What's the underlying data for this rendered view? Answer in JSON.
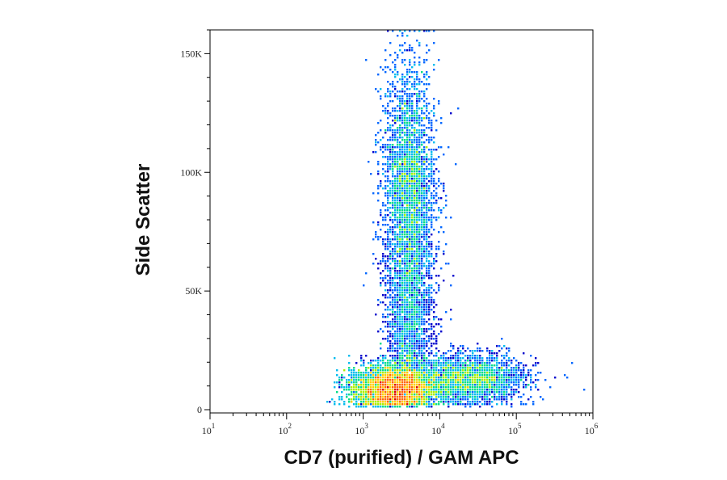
{
  "chart_data": {
    "type": "scatter",
    "subtype": "flow-cytometry-density-dot-plot",
    "xlabel": "CD7 (purified) / GAM APC",
    "ylabel": "Side Scatter",
    "x_scale": "log",
    "xlim": [
      10,
      1000000
    ],
    "ylim": [
      0,
      160000
    ],
    "x_ticks": [
      {
        "value": 10,
        "base": "10",
        "exp": "1"
      },
      {
        "value": 100,
        "base": "10",
        "exp": "2"
      },
      {
        "value": 1000,
        "base": "10",
        "exp": "3"
      },
      {
        "value": 10000,
        "base": "10",
        "exp": "4"
      },
      {
        "value": 100000,
        "base": "10",
        "exp": "5"
      },
      {
        "value": 1000000,
        "base": "10",
        "exp": "6"
      }
    ],
    "y_ticks": [
      {
        "value": 0,
        "label": "0"
      },
      {
        "value": 50000,
        "label": "50K"
      },
      {
        "value": 100000,
        "label": "100K"
      },
      {
        "value": 150000,
        "label": "150K"
      }
    ],
    "grid": false,
    "legend": "none",
    "colormap": [
      "#0000cc",
      "#0066ff",
      "#00bbee",
      "#00dd88",
      "#aaee00",
      "#ffcc00",
      "#ff6600",
      "#dd0000"
    ],
    "populations": [
      {
        "x_center": 2500,
        "y_center": 9000,
        "x_spread_decades": 0.28,
        "y_spread": 5000,
        "relative_density": 1.0
      },
      {
        "x_center": 4000,
        "y_center": 95000,
        "x_spread_decades": 0.17,
        "y_spread": 25000,
        "relative_density": 0.55
      },
      {
        "x_center": 4000,
        "y_center": 40000,
        "x_spread_decades": 0.15,
        "y_spread": 20000,
        "relative_density": 0.25
      },
      {
        "x_center": 25000,
        "y_center": 13000,
        "x_spread_decades": 0.35,
        "y_spread": 5000,
        "relative_density": 0.35
      }
    ]
  }
}
